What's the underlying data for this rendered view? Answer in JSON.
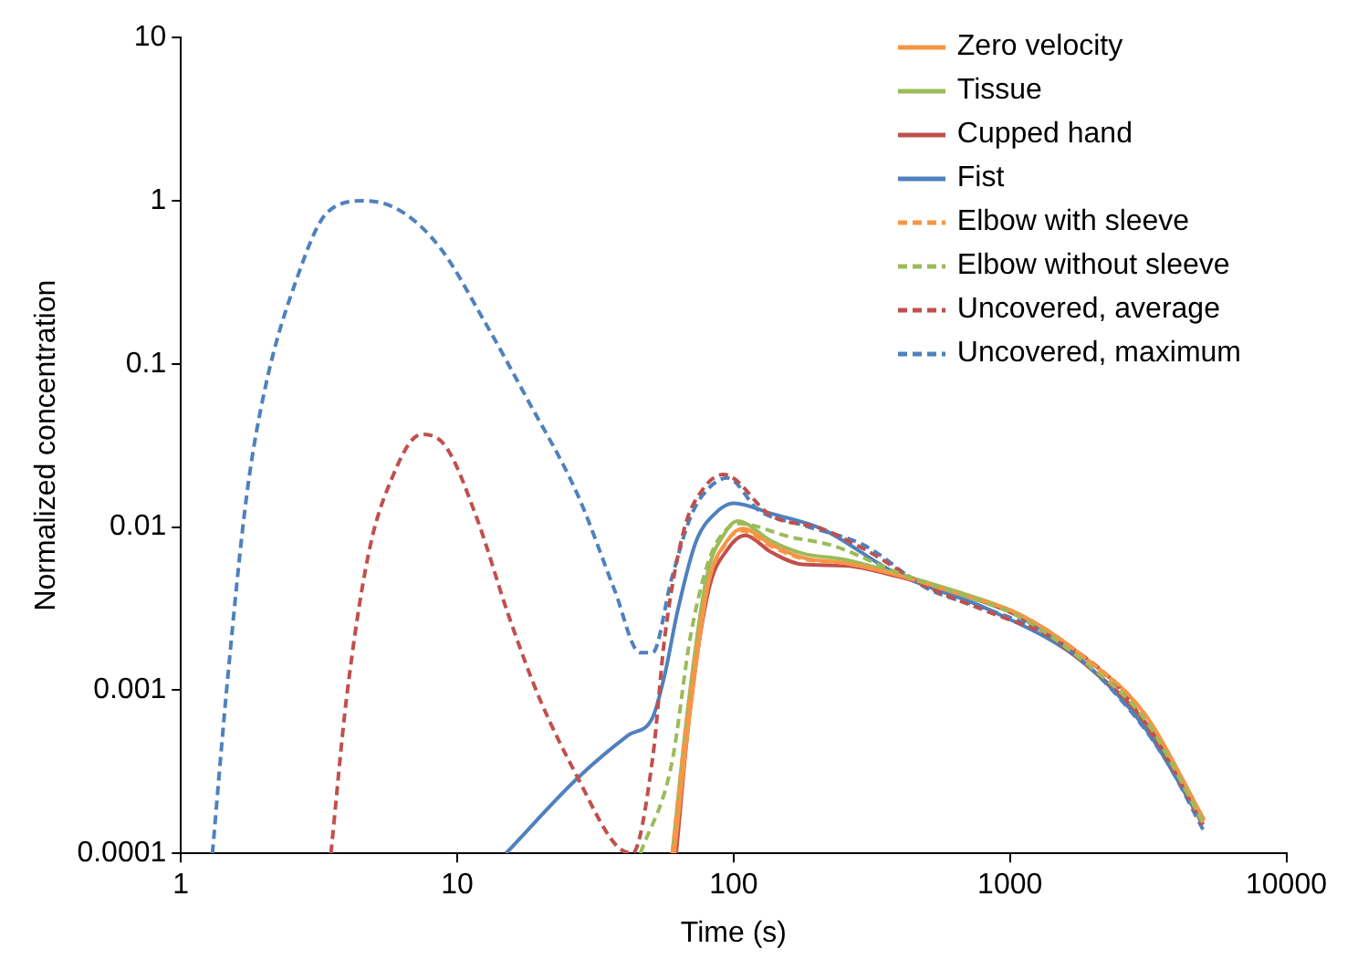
{
  "chart_data": {
    "type": "line",
    "xlabel": "Time (s)",
    "ylabel": "Normalized concentration",
    "log": "xy",
    "xlim": [
      1,
      10000
    ],
    "ylim": [
      0.0001,
      10
    ],
    "xticks": [
      1,
      10,
      100,
      1000,
      10000
    ],
    "yticks": [
      0.0001,
      0.001,
      0.01,
      0.1,
      1,
      10
    ],
    "grid": false,
    "legend": "top right",
    "marker": "none",
    "series": [
      {
        "name": "Zero velocity",
        "color": "#f79646",
        "line_style": "solid",
        "x": [
          61,
          70,
          81,
          95,
          108,
          137,
          177,
          254,
          387,
          650,
          1090,
          1850,
          3100,
          5040
        ],
        "values": [
          0.0001,
          0.0008,
          0.0045,
          0.0083,
          0.0098,
          0.0078,
          0.0065,
          0.006,
          0.0051,
          0.0039,
          0.0029,
          0.0016,
          0.0007,
          0.00016
        ]
      },
      {
        "name": "Tissue",
        "color": "#9bbb59",
        "line_style": "solid",
        "x": [
          60,
          69,
          80,
          93,
          103,
          137,
          177,
          254,
          387,
          650,
          1090,
          1850,
          3100,
          5040
        ],
        "values": [
          0.0001,
          0.0009,
          0.005,
          0.0092,
          0.0109,
          0.0082,
          0.0069,
          0.0063,
          0.0052,
          0.004,
          0.0029,
          0.0016,
          0.0007,
          0.00016
        ]
      },
      {
        "name": "Cupped hand",
        "color": "#c0504d",
        "line_style": "solid",
        "x": [
          62,
          69.4,
          81.2,
          95,
          110,
          137,
          177,
          254,
          387,
          650,
          1090,
          1850,
          3100,
          5040
        ],
        "values": [
          0.0001,
          0.00074,
          0.0041,
          0.0073,
          0.0089,
          0.007,
          0.0059,
          0.0058,
          0.005,
          0.0039,
          0.0028,
          0.00147,
          0.00063,
          0.00016
        ]
      },
      {
        "name": "Fist",
        "color": "#4f81bd",
        "line_style": "solid",
        "x": [
          15,
          27.3,
          41.6,
          50.9,
          56.3,
          62.8,
          73,
          85.6,
          100,
          137,
          207,
          387,
          845,
          1850,
          3100,
          5000
        ],
        "values": [
          0.0001,
          0.00029,
          0.00053,
          0.00068,
          0.00124,
          0.0031,
          0.0081,
          0.0121,
          0.014,
          0.0121,
          0.0098,
          0.0052,
          0.0031,
          0.00147,
          0.00058,
          0.00015
        ]
      },
      {
        "name": "Elbow with sleeve",
        "color": "#f79646",
        "line_style": "dashed",
        "x": [
          60,
          68,
          80,
          94,
          106,
          137,
          177,
          254,
          387,
          650,
          1090,
          1850,
          3100,
          5040
        ],
        "values": [
          0.0001,
          0.0007,
          0.0042,
          0.008,
          0.0095,
          0.0076,
          0.0064,
          0.006,
          0.0051,
          0.0039,
          0.0029,
          0.0016,
          0.0007,
          0.00015
        ]
      },
      {
        "name": "Elbow without sleeve",
        "color": "#9bbb59",
        "line_style": "dashed",
        "x": [
          46,
          59.6,
          70,
          82,
          95,
          105,
          160,
          228,
          387,
          650,
          1090,
          1850,
          3100,
          5040
        ],
        "values": [
          0.0001,
          0.00035,
          0.0022,
          0.0065,
          0.0098,
          0.0105,
          0.0087,
          0.0077,
          0.0053,
          0.0039,
          0.0028,
          0.0015,
          0.00065,
          0.00015
        ]
      },
      {
        "name": "Uncovered, average",
        "color": "#c0504d",
        "line_style": "dashed",
        "x": [
          3.49,
          3.97,
          4.76,
          5.71,
          7.42,
          9.1,
          11.8,
          15.3,
          19.9,
          27.3,
          37.1,
          43,
          50.9,
          56.3,
          66,
          77.3,
          92,
          137,
          207,
          298,
          502,
          845,
          1425,
          2400,
          3640,
          4980
        ],
        "values": [
          0.0001,
          0.00088,
          0.0067,
          0.0187,
          0.037,
          0.031,
          0.0112,
          0.0029,
          0.00088,
          0.00029,
          0.000115,
          0.0001,
          0.00038,
          0.0021,
          0.0095,
          0.017,
          0.021,
          0.0117,
          0.0098,
          0.0073,
          0.0043,
          0.003,
          0.0021,
          0.0011,
          0.0004,
          0.00015
        ]
      },
      {
        "name": "Uncovered, maximum",
        "color": "#4f81bd",
        "line_style": "dashed",
        "x": [
          1.3,
          1.48,
          1.73,
          2.02,
          2.62,
          3.39,
          4.64,
          6.35,
          8.7,
          12.5,
          17.9,
          27.3,
          37.1,
          45.8,
          50.9,
          59.6,
          69.4,
          77.3,
          95,
          123,
          177,
          298,
          502,
          845,
          1425,
          2400,
          3640,
          5040
        ],
        "values": [
          0.0001,
          0.00124,
          0.0157,
          0.072,
          0.33,
          0.85,
          1.0,
          0.85,
          0.51,
          0.184,
          0.061,
          0.0157,
          0.0041,
          0.0017,
          0.0017,
          0.0048,
          0.0112,
          0.0157,
          0.02,
          0.0127,
          0.0103,
          0.0077,
          0.0042,
          0.0031,
          0.0021,
          0.00096,
          0.00038,
          0.000136
        ]
      }
    ]
  }
}
